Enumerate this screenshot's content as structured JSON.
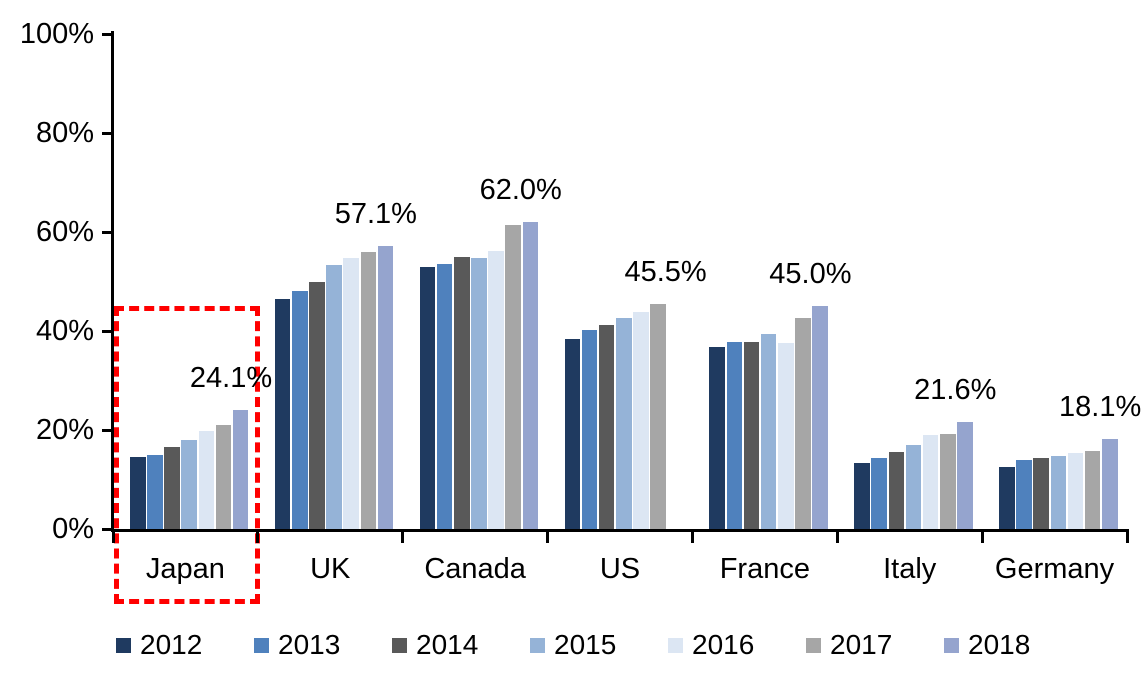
{
  "chart_data": {
    "type": "bar",
    "title": "",
    "xlabel": "",
    "ylabel": "",
    "ylim": [
      0,
      100
    ],
    "grid": false,
    "legend_position": "bottom",
    "y_ticks": [
      "0%",
      "20%",
      "40%",
      "60%",
      "80%",
      "100%"
    ],
    "categories": [
      "Japan",
      "UK",
      "Canada",
      "US",
      "France",
      "Italy",
      "Germany"
    ],
    "series": [
      {
        "name": "2012",
        "color": "#1F3A60",
        "values": [
          14.5,
          46.5,
          53.0,
          38.3,
          36.8,
          13.4,
          12.5
        ]
      },
      {
        "name": "2013",
        "color": "#4F81BD",
        "values": [
          14.9,
          48.0,
          53.6,
          40.3,
          37.8,
          14.3,
          14.0
        ]
      },
      {
        "name": "2014",
        "color": "#595959",
        "values": [
          16.5,
          50.0,
          55.0,
          41.2,
          37.8,
          15.5,
          14.3
        ]
      },
      {
        "name": "2015",
        "color": "#95B3D7",
        "values": [
          18.0,
          53.4,
          54.8,
          42.6,
          39.4,
          17.0,
          14.8
        ]
      },
      {
        "name": "2016",
        "color": "#DCE6F3",
        "values": [
          19.8,
          54.8,
          56.2,
          43.9,
          37.6,
          19.0,
          15.3
        ]
      },
      {
        "name": "2017",
        "color": "#A6A6A6",
        "values": [
          21.0,
          55.9,
          61.5,
          45.5,
          42.6,
          19.2,
          15.8
        ]
      },
      {
        "name": "2018",
        "color": "#95A4CE",
        "values": [
          24.1,
          57.1,
          62.0,
          null,
          45.0,
          21.6,
          18.1
        ]
      }
    ],
    "group_data_labels": [
      "24.1%",
      "57.1%",
      "62.0%",
      "45.5%",
      "45.0%",
      "21.6%",
      "18.1%"
    ],
    "annotations": {
      "highlight": {
        "category": "Japan",
        "shape": "dashed-rectangle",
        "color": "#FF0000"
      }
    }
  }
}
